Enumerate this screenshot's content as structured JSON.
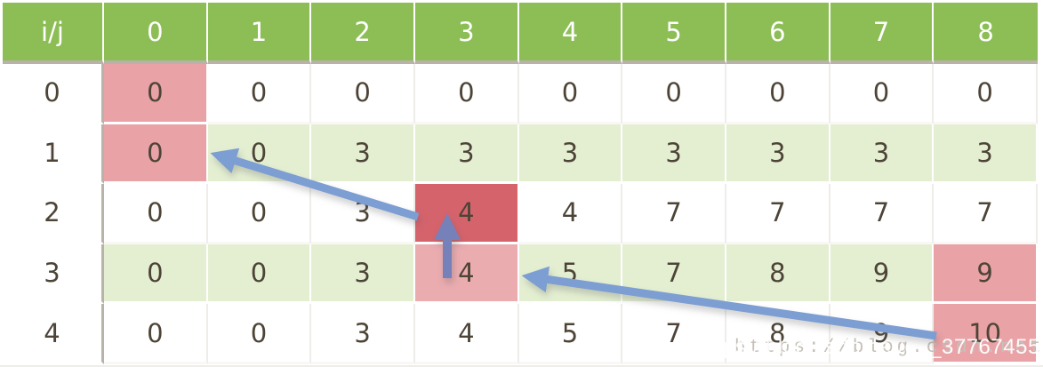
{
  "table": {
    "corner_label": "i/j",
    "header": [
      "i/j",
      "0",
      "1",
      "2",
      "3",
      "4",
      "5",
      "6",
      "7",
      "8"
    ],
    "rows": [
      {
        "label": "0",
        "values": [
          "0",
          "0",
          "0",
          "0",
          "0",
          "0",
          "0",
          "0",
          "0"
        ]
      },
      {
        "label": "1",
        "values": [
          "0",
          "0",
          "3",
          "3",
          "3",
          "3",
          "3",
          "3",
          "3"
        ]
      },
      {
        "label": "2",
        "values": [
          "0",
          "0",
          "3",
          "4",
          "4",
          "7",
          "7",
          "7",
          "7"
        ]
      },
      {
        "label": "3",
        "values": [
          "0",
          "0",
          "3",
          "4",
          "5",
          "7",
          "8",
          "9",
          "9"
        ]
      },
      {
        "label": "4",
        "values": [
          "0",
          "0",
          "3",
          "4",
          "5",
          "7",
          "8",
          "9",
          "10"
        ]
      }
    ],
    "green_rows": [
      1,
      3
    ]
  },
  "highlights": [
    {
      "row": 0,
      "col": 0,
      "type": "pink"
    },
    {
      "row": 1,
      "col": 0,
      "type": "pink"
    },
    {
      "row": 2,
      "col": 3,
      "type": "dark_red"
    },
    {
      "row": 3,
      "col": 3,
      "type": "light_pink"
    },
    {
      "row": 3,
      "col": 8,
      "type": "pink"
    },
    {
      "row": 4,
      "col": 8,
      "type": "pink"
    }
  ],
  "arrows": [
    {
      "name": "arrow-to-row1-col0",
      "from_cell": "row2-col3",
      "to_cell": "row1-col0",
      "color_key": "arrow_blue"
    },
    {
      "name": "arrow-up-to-row2-col3",
      "from_cell": "row3-col3",
      "to_cell": "row2-col3",
      "color_key": "arrow_purple"
    },
    {
      "name": "arrow-to-row3-col3",
      "from_cell": "row4-col8",
      "to_cell": "row3-col3",
      "color_key": "arrow_blue"
    }
  ],
  "watermark": {
    "text": "https://blog.csdn.net/qq_37767455"
  },
  "colors": {
    "header_bg": "#8CBE55",
    "header_text": "#FFFFFF",
    "row_alt_bg": "#E4EFD2",
    "cell_text": "#4D4437",
    "pink": "#E9A2A6",
    "light_pink": "#EBACB0",
    "dark_red": "#D5636C",
    "arrow_blue": "#7C9ED2",
    "arrow_purple": "#7681BA",
    "divider_gray": "#B8B2A9"
  }
}
